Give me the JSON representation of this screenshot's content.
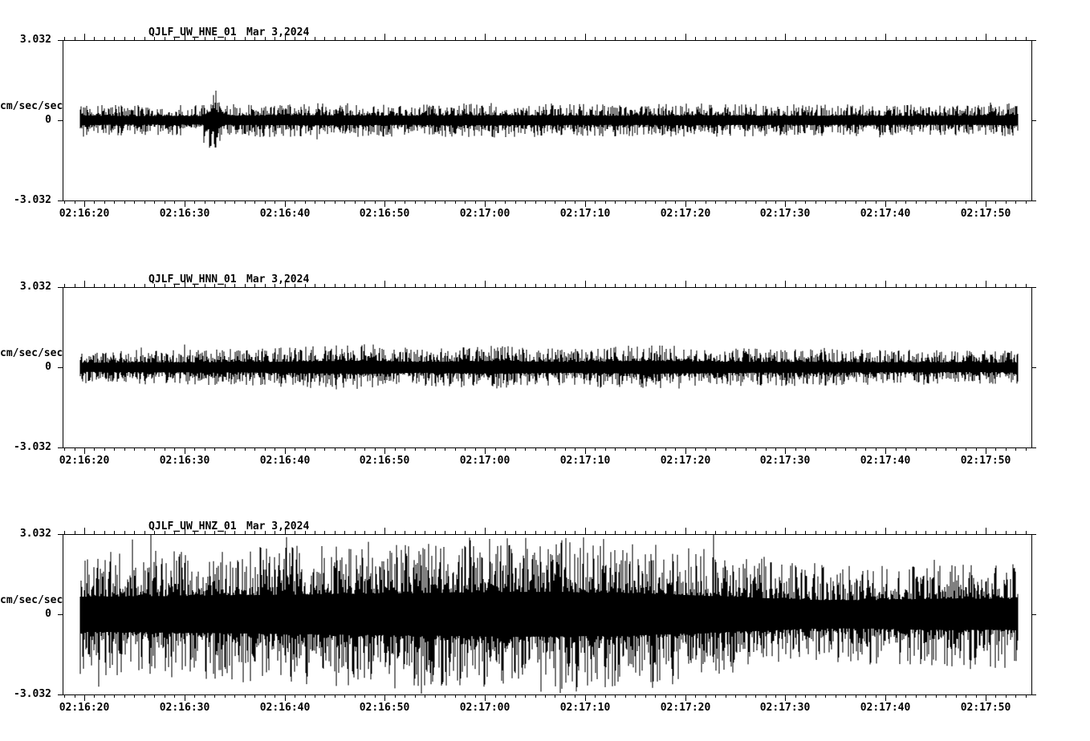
{
  "chart_data": {
    "type": "seismogram",
    "date": "Mar 3,2024",
    "ylabel": "cm/sec/sec",
    "ylim": [
      -3.032,
      3.032
    ],
    "y_ticks": [
      "3.032",
      "0",
      "-3.032"
    ],
    "x_ticks": [
      "02:16:20",
      "02:16:30",
      "02:16:40",
      "02:16:50",
      "02:17:00",
      "02:17:10",
      "02:17:20",
      "02:17:30",
      "02:17:40",
      "02:17:50"
    ],
    "grid": false,
    "legend": "none",
    "trace_color": "#000000",
    "background_color": "#ffffff",
    "panels": [
      {
        "title": "QJLF_UW_HNE_01",
        "channel": "HNE",
        "description": "uniform low-amplitude ground-acceleration noise, isolated spike near 02:16:33 reaching about +1.4 cm/sec/sec, typical peaks near +/-0.6",
        "envelope": [
          [
            0,
            0.21
          ],
          [
            0.05,
            0.19
          ],
          [
            0.13,
            0.19
          ],
          [
            0.142,
            0.46
          ],
          [
            0.155,
            0.2
          ],
          [
            0.25,
            0.22
          ],
          [
            0.35,
            0.2
          ],
          [
            0.45,
            0.22
          ],
          [
            0.55,
            0.2
          ],
          [
            0.65,
            0.21
          ],
          [
            0.75,
            0.2
          ],
          [
            0.85,
            0.2
          ],
          [
            0.93,
            0.19
          ],
          [
            1,
            0.22
          ]
        ]
      },
      {
        "title": "QJLF_UW_HNN_01",
        "channel": "HNN",
        "description": "uniform low-amplitude noise, slightly stronger bursts near 02:16:50 and 02:17:15, typical peaks near +/-0.7",
        "envelope": [
          [
            0,
            0.2
          ],
          [
            0.08,
            0.22
          ],
          [
            0.18,
            0.23
          ],
          [
            0.3,
            0.29
          ],
          [
            0.36,
            0.24
          ],
          [
            0.44,
            0.27
          ],
          [
            0.52,
            0.24
          ],
          [
            0.6,
            0.28
          ],
          [
            0.68,
            0.25
          ],
          [
            0.78,
            0.23
          ],
          [
            0.88,
            0.22
          ],
          [
            1,
            0.21
          ]
        ]
      },
      {
        "title": "QJLF_UW_HNZ_01",
        "channel": "HNZ",
        "description": "high-amplitude vertical-component shaking spanning most of the +/-3.032 range, strongest between 02:17:00 and 02:17:15, easing after 02:17:25",
        "envelope": [
          [
            0,
            0.78
          ],
          [
            0.08,
            0.8
          ],
          [
            0.16,
            0.84
          ],
          [
            0.24,
            0.88
          ],
          [
            0.32,
            0.92
          ],
          [
            0.4,
            0.96
          ],
          [
            0.46,
            1.0
          ],
          [
            0.52,
            0.98
          ],
          [
            0.58,
            0.95
          ],
          [
            0.63,
            0.88
          ],
          [
            0.68,
            0.8
          ],
          [
            0.73,
            0.72
          ],
          [
            0.78,
            0.64
          ],
          [
            0.83,
            0.62
          ],
          [
            0.88,
            0.66
          ],
          [
            0.93,
            0.7
          ],
          [
            1,
            0.68
          ]
        ]
      }
    ]
  }
}
